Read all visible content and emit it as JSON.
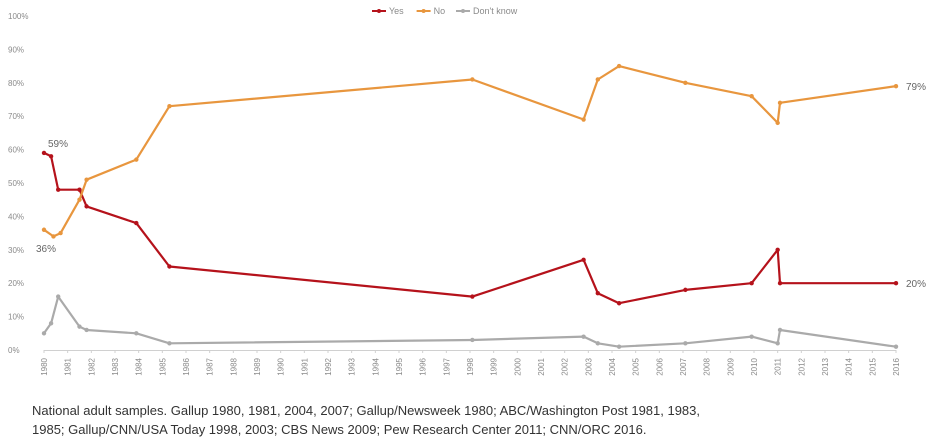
{
  "chart_data": {
    "type": "line",
    "title": "",
    "xlabel": "",
    "ylabel": "",
    "ylim": [
      0,
      100
    ],
    "xlim": [
      1980,
      2016
    ],
    "y_ticks": [
      "0%",
      "10%",
      "20%",
      "30%",
      "40%",
      "50%",
      "60%",
      "70%",
      "80%",
      "90%",
      "100%"
    ],
    "x_ticks": [
      "1980",
      "1981",
      "1982",
      "1983",
      "1984",
      "1985",
      "1986",
      "1987",
      "1988",
      "1989",
      "1990",
      "1991",
      "1992",
      "1993",
      "1994",
      "1995",
      "1996",
      "1997",
      "1998",
      "1999",
      "2000",
      "2001",
      "2002",
      "2003",
      "2004",
      "2005",
      "2006",
      "2007",
      "2008",
      "2009",
      "2010",
      "2011",
      "2012",
      "2013",
      "2014",
      "2015",
      "2016"
    ],
    "grid": false,
    "legend_position": "top-center",
    "series": [
      {
        "name": "Yes",
        "color": "#b5121b",
        "points": [
          [
            1980.0,
            59
          ],
          [
            1980.3,
            58
          ],
          [
            1980.6,
            48
          ],
          [
            1981.5,
            48
          ],
          [
            1981.8,
            43
          ],
          [
            1983.9,
            38
          ],
          [
            1985.3,
            25
          ],
          [
            1998.1,
            16
          ],
          [
            2002.8,
            27
          ],
          [
            2003.4,
            17
          ],
          [
            2004.3,
            14
          ],
          [
            2007.1,
            18
          ],
          [
            2009.9,
            20
          ],
          [
            2011.0,
            30
          ],
          [
            2011.1,
            20
          ],
          [
            2016.0,
            20
          ]
        ]
      },
      {
        "name": "No",
        "color": "#e8963e",
        "points": [
          [
            1980.0,
            36
          ],
          [
            1980.4,
            34
          ],
          [
            1980.7,
            35
          ],
          [
            1981.5,
            45
          ],
          [
            1981.8,
            51
          ],
          [
            1983.9,
            57
          ],
          [
            1985.3,
            73
          ],
          [
            1998.1,
            81
          ],
          [
            2002.8,
            69
          ],
          [
            2003.4,
            81
          ],
          [
            2004.3,
            85
          ],
          [
            2007.1,
            80
          ],
          [
            2009.9,
            76
          ],
          [
            2011.0,
            68
          ],
          [
            2011.1,
            74
          ],
          [
            2016.0,
            79
          ]
        ]
      },
      {
        "name": "Don't know",
        "color": "#aaaaaa",
        "points": [
          [
            1980.0,
            5
          ],
          [
            1980.3,
            8
          ],
          [
            1980.6,
            16
          ],
          [
            1981.5,
            7
          ],
          [
            1981.8,
            6
          ],
          [
            1983.9,
            5
          ],
          [
            1985.3,
            2
          ],
          [
            1998.1,
            3
          ],
          [
            2002.8,
            4
          ],
          [
            2003.4,
            2
          ],
          [
            2004.3,
            1
          ],
          [
            2007.1,
            2
          ],
          [
            2009.9,
            4
          ],
          [
            2011.0,
            2
          ],
          [
            2011.1,
            6
          ],
          [
            2016.0,
            1
          ]
        ]
      }
    ],
    "annotations": [
      {
        "series": "Yes",
        "text": "59%"
      },
      {
        "series": "No",
        "text": "36%"
      },
      {
        "series": "No",
        "text": "79%"
      },
      {
        "series": "Yes",
        "text": "20%"
      }
    ]
  },
  "source_note": [
    "National adult samples. Gallup 1980, 1981, 2004, 2007; Gallup/Newsweek 1980; ABC/Washington Post 1981, 1983,",
    "1985; Gallup/CNN/USA Today 1998, 2003; CBS News 2009; Pew Research Center 2011; CNN/ORC 2016."
  ]
}
